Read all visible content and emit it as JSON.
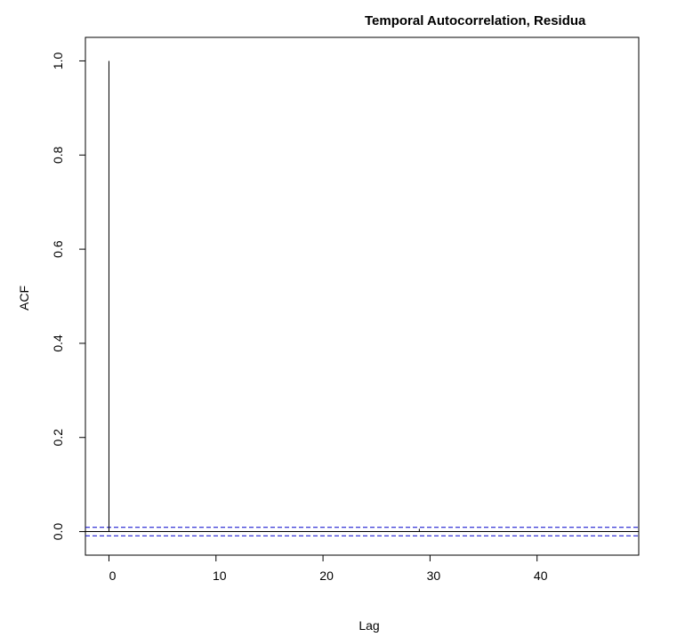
{
  "chart_data": {
    "type": "bar",
    "title": "Temporal Autocorrelation, Residua",
    "xlabel": "Lag",
    "ylabel": "ACF",
    "xlim": [
      -2.2,
      49.5
    ],
    "ylim": [
      -0.05,
      1.05
    ],
    "x_ticks": [
      0,
      10,
      20,
      30,
      40
    ],
    "y_ticks": [
      0.0,
      0.2,
      0.4,
      0.6,
      0.8,
      1.0
    ],
    "y_tick_labels": [
      "0.0",
      "0.2",
      "0.4",
      "0.6",
      "0.8",
      "1.0"
    ],
    "lags": [
      0,
      1,
      2,
      3,
      4,
      5,
      6,
      7,
      8,
      9,
      10,
      11,
      12,
      13,
      14,
      15,
      16,
      17,
      18,
      19,
      20,
      21,
      22,
      23,
      24,
      25,
      26,
      27,
      28,
      29,
      30,
      31,
      32,
      33,
      34,
      35,
      36,
      37,
      38,
      39,
      40,
      41,
      42,
      43,
      44,
      45,
      46,
      47,
      48,
      49
    ],
    "values": [
      1.0,
      0.001,
      0.0,
      0.001,
      0.0,
      0.0,
      0.0,
      0.001,
      0.0,
      0.0,
      0.0,
      0.0,
      0.001,
      0.0,
      0.0,
      0.0,
      0.0,
      0.0,
      0.0,
      0.0,
      0.0,
      0.0,
      0.0,
      0.0,
      0.0,
      0.0,
      0.0,
      0.0,
      0.0,
      0.006,
      0.0,
      0.0,
      0.0,
      0.0,
      0.0,
      0.0,
      0.0,
      0.0,
      0.0,
      0.0,
      0.0,
      0.0,
      0.0,
      0.0,
      0.0,
      0.0,
      0.0,
      0.0,
      0.0,
      0.0
    ],
    "confidence_band": [
      -0.009,
      0.009
    ],
    "zero_line": 0,
    "colors": {
      "bars": "#000000",
      "confidence": "#0000cc",
      "axes": "#000000"
    },
    "grid": false,
    "legend": "none"
  }
}
